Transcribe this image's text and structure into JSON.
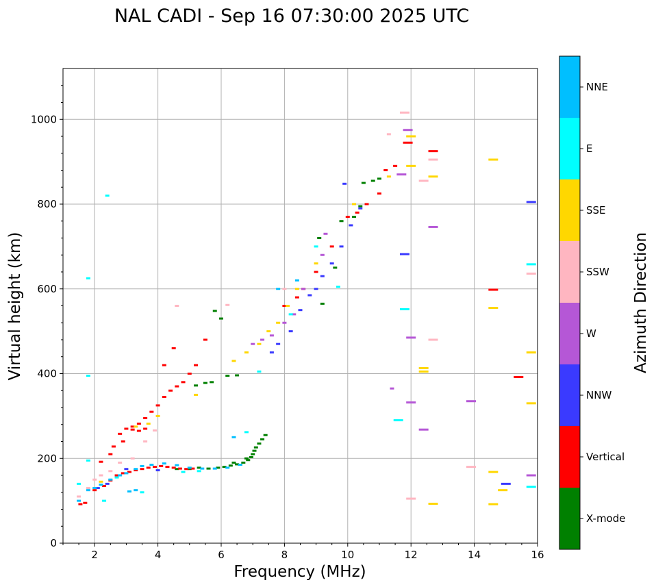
{
  "chart_data": {
    "type": "scatter",
    "title": "NAL CADI - Sep 16 07:30:00 2025 UTC",
    "xlabel": "Frequency (MHz)",
    "ylabel": "Virtual height (km)",
    "xlim": [
      1,
      16
    ],
    "ylim": [
      0,
      1120
    ],
    "xticks": [
      2,
      4,
      6,
      8,
      10,
      12,
      14,
      16
    ],
    "yticks": [
      0,
      200,
      400,
      600,
      800,
      1000
    ],
    "grid": true,
    "colorbar": {
      "label": "Azimuth Direction",
      "categories": [
        {
          "name": "X-mode",
          "color": "#008000"
        },
        {
          "name": "Vertical",
          "color": "#ff0000"
        },
        {
          "name": "NNW",
          "color": "#3a3aff"
        },
        {
          "name": "W",
          "color": "#b557d6"
        },
        {
          "name": "SSW",
          "color": "#ffb6c1"
        },
        {
          "name": "SSE",
          "color": "#ffd700"
        },
        {
          "name": "E",
          "color": "#00ffff"
        },
        {
          "name": "NNE",
          "color": "#00bfff"
        }
      ]
    },
    "series": [
      {
        "name": "X-mode",
        "color": "#008000",
        "points": [
          [
            5.0,
            175
          ],
          [
            5.3,
            178
          ],
          [
            5.6,
            176
          ],
          [
            5.9,
            178
          ],
          [
            6.1,
            180
          ],
          [
            6.3,
            183
          ],
          [
            6.5,
            186
          ],
          [
            6.7,
            190
          ],
          [
            6.85,
            196
          ],
          [
            6.95,
            203
          ],
          [
            7.0,
            210
          ],
          [
            7.05,
            218
          ],
          [
            7.1,
            226
          ],
          [
            7.2,
            235
          ],
          [
            7.3,
            245
          ],
          [
            7.4,
            255
          ],
          [
            4.6,
            175
          ],
          [
            6.4,
            190
          ],
          [
            6.6,
            185
          ],
          [
            6.8,
            200
          ],
          [
            5.2,
            372
          ],
          [
            5.5,
            378
          ],
          [
            5.7,
            380
          ],
          [
            6.2,
            395
          ],
          [
            6.5,
            396
          ],
          [
            5.8,
            548
          ],
          [
            6.0,
            530
          ],
          [
            9.2,
            565
          ],
          [
            9.6,
            650
          ],
          [
            9.1,
            720
          ],
          [
            10.5,
            850
          ],
          [
            10.8,
            855
          ],
          [
            11.0,
            860
          ],
          [
            10.2,
            770
          ],
          [
            9.8,
            760
          ],
          [
            10.4,
            795
          ]
        ]
      },
      {
        "name": "Vertical",
        "color": "#ff0000",
        "points": [
          [
            1.55,
            92
          ],
          [
            1.7,
            95
          ],
          [
            2.0,
            125
          ],
          [
            2.3,
            135
          ],
          [
            2.5,
            148
          ],
          [
            2.7,
            160
          ],
          [
            2.9,
            165
          ],
          [
            3.1,
            168
          ],
          [
            3.3,
            172
          ],
          [
            3.5,
            175
          ],
          [
            3.7,
            178
          ],
          [
            3.9,
            180
          ],
          [
            4.1,
            182
          ],
          [
            4.3,
            180
          ],
          [
            4.5,
            178
          ],
          [
            4.7,
            176
          ],
          [
            4.9,
            175
          ],
          [
            5.1,
            176
          ],
          [
            2.6,
            228
          ],
          [
            2.8,
            258
          ],
          [
            3.0,
            270
          ],
          [
            3.2,
            275
          ],
          [
            3.4,
            282
          ],
          [
            3.6,
            295
          ],
          [
            3.8,
            310
          ],
          [
            4.0,
            325
          ],
          [
            4.2,
            345
          ],
          [
            4.4,
            360
          ],
          [
            4.6,
            370
          ],
          [
            4.8,
            380
          ],
          [
            5.0,
            400
          ],
          [
            5.2,
            420
          ],
          [
            4.2,
            420
          ],
          [
            4.5,
            460
          ],
          [
            5.5,
            480
          ],
          [
            3.2,
            268
          ],
          [
            3.4,
            265
          ],
          [
            3.6,
            270
          ],
          [
            2.9,
            240
          ],
          [
            2.5,
            210
          ],
          [
            2.2,
            192
          ],
          [
            8.0,
            560
          ],
          [
            8.4,
            580
          ],
          [
            8.6,
            600
          ],
          [
            9.0,
            640
          ],
          [
            9.5,
            700
          ],
          [
            10.0,
            770
          ],
          [
            10.3,
            780
          ],
          [
            10.6,
            800
          ],
          [
            11.0,
            825
          ],
          [
            11.2,
            880
          ],
          [
            11.5,
            890
          ],
          [
            11.9,
            945
          ],
          [
            12.7,
            925
          ],
          [
            14.6,
            598
          ],
          [
            15.4,
            392
          ]
        ]
      },
      {
        "name": "NNW",
        "color": "#3a3aff",
        "points": [
          [
            2.1,
            130
          ],
          [
            2.4,
            140
          ],
          [
            3.0,
            175
          ],
          [
            4.0,
            172
          ],
          [
            7.6,
            450
          ],
          [
            7.8,
            470
          ],
          [
            8.2,
            500
          ],
          [
            8.5,
            550
          ],
          [
            8.8,
            585
          ],
          [
            9.0,
            600
          ],
          [
            9.2,
            630
          ],
          [
            9.5,
            660
          ],
          [
            9.8,
            700
          ],
          [
            10.1,
            750
          ],
          [
            10.4,
            790
          ],
          [
            9.9,
            848
          ],
          [
            11.8,
            682
          ],
          [
            15.0,
            140
          ],
          [
            15.8,
            805
          ]
        ]
      },
      {
        "name": "W",
        "color": "#b557d6",
        "points": [
          [
            7.0,
            470
          ],
          [
            7.3,
            480
          ],
          [
            7.6,
            490
          ],
          [
            8.0,
            520
          ],
          [
            8.3,
            540
          ],
          [
            8.6,
            600
          ],
          [
            9.2,
            680
          ],
          [
            9.3,
            730
          ],
          [
            11.7,
            870
          ],
          [
            11.9,
            975
          ],
          [
            11.4,
            365
          ],
          [
            12.0,
            485
          ],
          [
            12.0,
            332
          ],
          [
            12.4,
            268
          ],
          [
            12.7,
            746
          ],
          [
            13.9,
            335
          ],
          [
            15.8,
            160
          ]
        ]
      },
      {
        "name": "SSW",
        "color": "#ffb6c1",
        "points": [
          [
            1.5,
            110
          ],
          [
            1.8,
            130
          ],
          [
            2.0,
            150
          ],
          [
            2.2,
            160
          ],
          [
            2.5,
            170
          ],
          [
            2.8,
            190
          ],
          [
            3.2,
            200
          ],
          [
            3.6,
            240
          ],
          [
            3.9,
            266
          ],
          [
            4.6,
            560
          ],
          [
            6.2,
            562
          ],
          [
            8.0,
            600
          ],
          [
            11.3,
            965
          ],
          [
            11.8,
            1016
          ],
          [
            12.0,
            105
          ],
          [
            12.4,
            855
          ],
          [
            12.7,
            905
          ],
          [
            12.7,
            480
          ],
          [
            13.9,
            180
          ],
          [
            15.8,
            636
          ]
        ]
      },
      {
        "name": "SSE",
        "color": "#ffd700",
        "points": [
          [
            2.2,
            145
          ],
          [
            3.3,
            275
          ],
          [
            3.7,
            282
          ],
          [
            4.0,
            300
          ],
          [
            5.2,
            350
          ],
          [
            6.4,
            430
          ],
          [
            6.8,
            450
          ],
          [
            7.2,
            470
          ],
          [
            7.5,
            500
          ],
          [
            7.8,
            520
          ],
          [
            8.1,
            560
          ],
          [
            8.4,
            600
          ],
          [
            9.0,
            660
          ],
          [
            10.2,
            800
          ],
          [
            11.3,
            865
          ],
          [
            12.0,
            960
          ],
          [
            12.0,
            890
          ],
          [
            12.4,
            405
          ],
          [
            12.4,
            413
          ],
          [
            12.7,
            865
          ],
          [
            12.7,
            93
          ],
          [
            14.6,
            905
          ],
          [
            14.6,
            555
          ],
          [
            14.6,
            168
          ],
          [
            14.6,
            92
          ],
          [
            14.9,
            125
          ],
          [
            15.8,
            450
          ],
          [
            15.8,
            330
          ]
        ]
      },
      {
        "name": "E",
        "color": "#00ffff",
        "points": [
          [
            1.5,
            140
          ],
          [
            1.8,
            195
          ],
          [
            1.8,
            395
          ],
          [
            1.8,
            625
          ],
          [
            2.3,
            100
          ],
          [
            2.4,
            820
          ],
          [
            2.7,
            155
          ],
          [
            3.5,
            120
          ],
          [
            4.8,
            168
          ],
          [
            5.3,
            170
          ],
          [
            6.8,
            262
          ],
          [
            7.2,
            405
          ],
          [
            8.2,
            540
          ],
          [
            9.0,
            700
          ],
          [
            9.7,
            605
          ],
          [
            11.8,
            552
          ],
          [
            11.6,
            290
          ],
          [
            15.8,
            133
          ],
          [
            15.8,
            658
          ]
        ]
      },
      {
        "name": "NNE",
        "color": "#00bfff",
        "points": [
          [
            1.5,
            100
          ],
          [
            1.8,
            125
          ],
          [
            2.0,
            130
          ],
          [
            2.2,
            138
          ],
          [
            2.5,
            150
          ],
          [
            2.8,
            160
          ],
          [
            3.0,
            165
          ],
          [
            3.3,
            175
          ],
          [
            3.5,
            182
          ],
          [
            3.8,
            185
          ],
          [
            4.2,
            188
          ],
          [
            4.6,
            184
          ],
          [
            5.0,
            178
          ],
          [
            5.4,
            176
          ],
          [
            5.8,
            176
          ],
          [
            6.2,
            178
          ],
          [
            6.6,
            185
          ],
          [
            3.1,
            122
          ],
          [
            3.3,
            125
          ],
          [
            6.4,
            250
          ],
          [
            7.8,
            600
          ],
          [
            8.4,
            620
          ]
        ]
      }
    ]
  }
}
